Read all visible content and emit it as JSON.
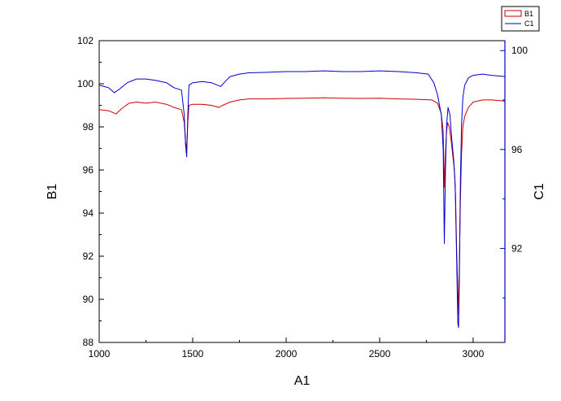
{
  "chart_data": {
    "type": "line",
    "xlabel": "A1",
    "ylabel": "B1",
    "y2label": "C1",
    "xlim": [
      1000,
      3170
    ],
    "ylim": [
      88,
      102
    ],
    "y2lim": [
      88.2,
      100.4
    ],
    "x_ticks": [
      1000,
      1500,
      2000,
      2500,
      3000
    ],
    "y_ticks": [
      88,
      90,
      92,
      94,
      96,
      98,
      100,
      102
    ],
    "y2_ticks": [
      92,
      96,
      100
    ],
    "grid": false,
    "legend_position": "top-right",
    "series": [
      {
        "name": "B1",
        "axis": "left",
        "color": "#cc0000",
        "points": [
          [
            1000,
            98.8
          ],
          [
            1050,
            98.75
          ],
          [
            1090,
            98.6
          ],
          [
            1120,
            98.85
          ],
          [
            1160,
            99.1
          ],
          [
            1200,
            99.15
          ],
          [
            1250,
            99.1
          ],
          [
            1300,
            99.15
          ],
          [
            1360,
            99.05
          ],
          [
            1400,
            98.9
          ],
          [
            1440,
            98.8
          ],
          [
            1455,
            98.2
          ],
          [
            1462,
            97.3
          ],
          [
            1468,
            97.0
          ],
          [
            1474,
            98.2
          ],
          [
            1480,
            99.0
          ],
          [
            1500,
            99.05
          ],
          [
            1550,
            99.05
          ],
          [
            1600,
            99.0
          ],
          [
            1640,
            98.9
          ],
          [
            1660,
            99.0
          ],
          [
            1700,
            99.15
          ],
          [
            1750,
            99.25
          ],
          [
            1800,
            99.3
          ],
          [
            1900,
            99.3
          ],
          [
            2000,
            99.32
          ],
          [
            2100,
            99.33
          ],
          [
            2200,
            99.35
          ],
          [
            2300,
            99.33
          ],
          [
            2400,
            99.32
          ],
          [
            2500,
            99.33
          ],
          [
            2600,
            99.3
          ],
          [
            2700,
            99.28
          ],
          [
            2780,
            99.25
          ],
          [
            2810,
            99.1
          ],
          [
            2830,
            98.6
          ],
          [
            2840,
            97.8
          ],
          [
            2846,
            95.2
          ],
          [
            2852,
            96.8
          ],
          [
            2858,
            97.8
          ],
          [
            2864,
            98.2
          ],
          [
            2872,
            98.0
          ],
          [
            2882,
            97.4
          ],
          [
            2892,
            96.6
          ],
          [
            2900,
            96.0
          ],
          [
            2906,
            94.8
          ],
          [
            2912,
            92.2
          ],
          [
            2918,
            90.5
          ],
          [
            2922,
            89.3
          ],
          [
            2926,
            91.4
          ],
          [
            2932,
            94.6
          ],
          [
            2938,
            96.8
          ],
          [
            2945,
            98.0
          ],
          [
            2955,
            98.5
          ],
          [
            2975,
            98.9
          ],
          [
            3000,
            99.15
          ],
          [
            3050,
            99.25
          ],
          [
            3100,
            99.25
          ],
          [
            3170,
            99.2
          ]
        ]
      },
      {
        "name": "C1",
        "axis": "right",
        "color": "#0000cc",
        "points": [
          [
            1000,
            98.6
          ],
          [
            1050,
            98.5
          ],
          [
            1080,
            98.3
          ],
          [
            1110,
            98.45
          ],
          [
            1150,
            98.7
          ],
          [
            1200,
            98.85
          ],
          [
            1250,
            98.85
          ],
          [
            1300,
            98.8
          ],
          [
            1360,
            98.7
          ],
          [
            1400,
            98.5
          ],
          [
            1440,
            98.4
          ],
          [
            1455,
            97.4
          ],
          [
            1462,
            96.2
          ],
          [
            1468,
            95.7
          ],
          [
            1474,
            97.4
          ],
          [
            1480,
            98.6
          ],
          [
            1500,
            98.7
          ],
          [
            1550,
            98.75
          ],
          [
            1600,
            98.7
          ],
          [
            1650,
            98.55
          ],
          [
            1680,
            98.8
          ],
          [
            1700,
            98.95
          ],
          [
            1750,
            99.05
          ],
          [
            1800,
            99.1
          ],
          [
            1900,
            99.12
          ],
          [
            2000,
            99.15
          ],
          [
            2100,
            99.15
          ],
          [
            2200,
            99.18
          ],
          [
            2300,
            99.15
          ],
          [
            2400,
            99.15
          ],
          [
            2500,
            99.18
          ],
          [
            2600,
            99.15
          ],
          [
            2700,
            99.1
          ],
          [
            2760,
            99.05
          ],
          [
            2790,
            98.7
          ],
          [
            2810,
            98.2
          ],
          [
            2830,
            97.4
          ],
          [
            2840,
            96.0
          ],
          [
            2846,
            92.2
          ],
          [
            2852,
            95.2
          ],
          [
            2858,
            97.0
          ],
          [
            2866,
            97.7
          ],
          [
            2876,
            97.4
          ],
          [
            2886,
            96.4
          ],
          [
            2896,
            95.6
          ],
          [
            2904,
            94.6
          ],
          [
            2912,
            91.5
          ],
          [
            2918,
            89.0
          ],
          [
            2922,
            88.8
          ],
          [
            2926,
            90.6
          ],
          [
            2932,
            94.8
          ],
          [
            2938,
            97.0
          ],
          [
            2945,
            98.1
          ],
          [
            2955,
            98.6
          ],
          [
            2975,
            98.9
          ],
          [
            3000,
            99.0
          ],
          [
            3050,
            99.05
          ],
          [
            3100,
            99.0
          ],
          [
            3170,
            98.95
          ]
        ]
      }
    ]
  }
}
